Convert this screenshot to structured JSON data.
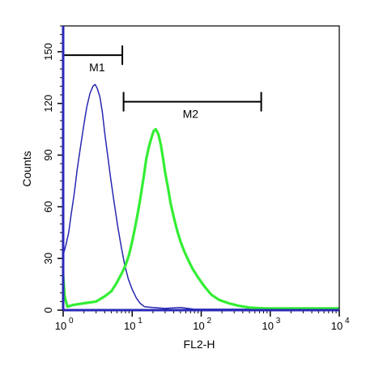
{
  "chart_data": {
    "type": "line",
    "xlabel": "FL2-H",
    "ylabel": "Counts",
    "xscale": "log",
    "xlim": [
      1,
      10000
    ],
    "ylim": [
      0,
      165
    ],
    "x_ticks": [
      {
        "base": "10",
        "exp": "0",
        "value": 1
      },
      {
        "base": "10",
        "exp": "1",
        "value": 10
      },
      {
        "base": "10",
        "exp": "2",
        "value": 100
      },
      {
        "base": "10",
        "exp": "3",
        "value": 1000
      },
      {
        "base": "10",
        "exp": "4",
        "value": 10000
      }
    ],
    "y_ticks": [
      {
        "label": "0",
        "value": 0
      },
      {
        "label": "30",
        "value": 30
      },
      {
        "label": "60",
        "value": 60
      },
      {
        "label": "90",
        "value": 90
      },
      {
        "label": "120",
        "value": 120
      },
      {
        "label": "150",
        "value": 150
      }
    ],
    "grid": false,
    "markers": [
      {
        "label": "M1",
        "x1": 1,
        "x2": 7.2,
        "y": 148,
        "label_x": 3.1
      },
      {
        "label": "M2",
        "x1": 7.5,
        "x2": 740,
        "y": 121,
        "label_x": 70
      }
    ],
    "series": [
      {
        "color": "#2727b0",
        "points": [
          [
            1.0,
            32
          ],
          [
            1.1,
            38
          ],
          [
            1.2,
            45
          ],
          [
            1.3,
            55
          ],
          [
            1.45,
            68
          ],
          [
            1.6,
            82
          ],
          [
            1.8,
            96
          ],
          [
            2.0,
            108
          ],
          [
            2.2,
            118
          ],
          [
            2.45,
            126
          ],
          [
            2.7,
            130
          ],
          [
            2.9,
            131
          ],
          [
            3.1,
            129
          ],
          [
            3.4,
            124
          ],
          [
            3.7,
            115
          ],
          [
            4.0,
            103
          ],
          [
            4.4,
            90
          ],
          [
            4.9,
            76
          ],
          [
            5.5,
            62
          ],
          [
            6.2,
            48
          ],
          [
            7.0,
            36
          ],
          [
            7.8,
            26
          ],
          [
            8.8,
            18
          ],
          [
            10,
            12
          ],
          [
            11.5,
            7
          ],
          [
            13,
            4
          ],
          [
            15,
            2
          ],
          [
            20,
            1.5
          ],
          [
            30,
            1
          ],
          [
            50,
            1.5
          ],
          [
            80,
            0.5
          ],
          [
            150,
            0.5
          ],
          [
            500,
            0.5
          ],
          [
            2000,
            0.5
          ],
          [
            10000,
            0.5
          ]
        ]
      },
      {
        "color": "#33ee33",
        "points": [
          [
            1.0,
            20
          ],
          [
            1.05,
            8
          ],
          [
            1.15,
            2
          ],
          [
            1.4,
            3
          ],
          [
            2,
            4
          ],
          [
            3,
            5
          ],
          [
            4,
            8
          ],
          [
            5,
            11
          ],
          [
            6,
            16
          ],
          [
            7,
            21
          ],
          [
            8,
            26
          ],
          [
            9,
            32
          ],
          [
            10,
            40
          ],
          [
            11,
            48
          ],
          [
            12,
            56
          ],
          [
            13,
            64
          ],
          [
            14,
            72
          ],
          [
            15,
            80
          ],
          [
            16,
            88
          ],
          [
            17.5,
            95
          ],
          [
            19,
            100
          ],
          [
            20.5,
            104
          ],
          [
            22,
            105
          ],
          [
            24,
            102
          ],
          [
            26,
            96
          ],
          [
            28,
            88
          ],
          [
            30,
            80
          ],
          [
            33,
            71
          ],
          [
            36,
            62
          ],
          [
            40,
            54
          ],
          [
            45,
            46
          ],
          [
            50,
            40
          ],
          [
            57,
            34
          ],
          [
            65,
            29
          ],
          [
            75,
            24
          ],
          [
            90,
            19
          ],
          [
            110,
            14
          ],
          [
            140,
            9
          ],
          [
            180,
            6
          ],
          [
            250,
            4
          ],
          [
            350,
            2.5
          ],
          [
            500,
            1.5
          ],
          [
            800,
            1
          ],
          [
            2000,
            1
          ],
          [
            10000,
            1
          ]
        ]
      }
    ]
  }
}
